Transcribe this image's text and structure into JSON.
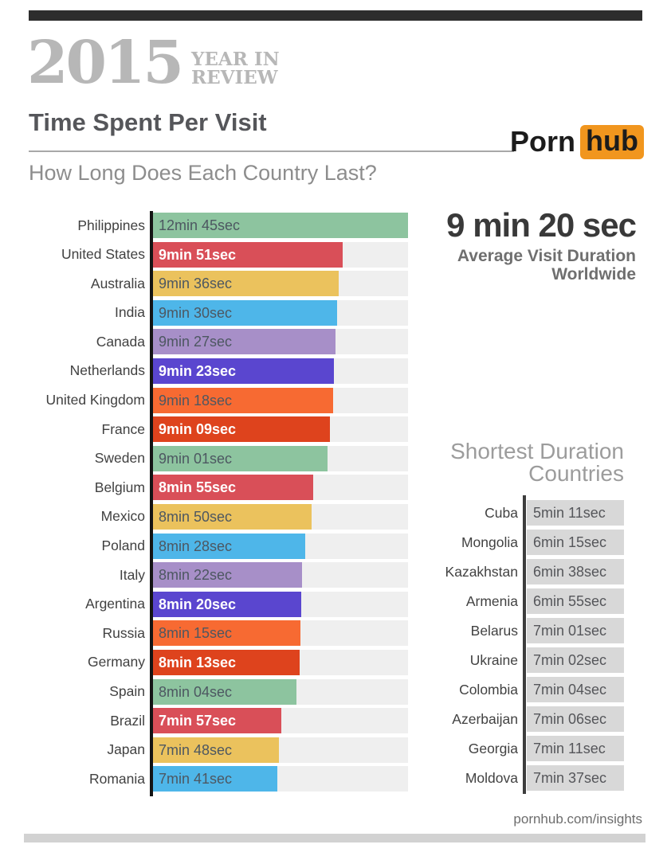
{
  "page": {
    "background": "#ffffff",
    "top_bar_color": "#2d2d2d",
    "bottom_bar_color": "#d2d2d2"
  },
  "header": {
    "year": "2015",
    "year_line1": "YEAR IN",
    "year_line2": "REVIEW",
    "title": "Time Spent Per Visit",
    "subtitle": "How Long Does Each Country Last?",
    "logo": {
      "word1": "Porn",
      "word2": "hub",
      "orange": "#f1961e"
    }
  },
  "summary": {
    "value": "9 min 20 sec",
    "line1": "Average Visit Duration",
    "line2": "Worldwide"
  },
  "shortest_header": {
    "line1": "Shortest Duration",
    "line2": "Countries"
  },
  "footer": {
    "url": "pornhub.com/insights"
  },
  "chart_data": [
    {
      "type": "bar",
      "orientation": "horizontal",
      "title": "Time Spent Per Visit",
      "subtitle": "How Long Does Each Country Last?",
      "value_unit": "average visit duration (min:sec)",
      "palette": {
        "green": "#8dc49f",
        "red": "#d94f58",
        "yellow": "#ebc25d",
        "blue": "#4eb6e9",
        "purpleLight": "#a78fc8",
        "purpleDark": "#5a46cf",
        "orange": "#f76a32",
        "redOrange": "#de431d"
      },
      "track_color": "#efefef",
      "rows": [
        {
          "country": "Philippines",
          "duration": "12min 45sec",
          "seconds": 765,
          "bar_pct": 100,
          "color": "green",
          "text": "dark"
        },
        {
          "country": "United States",
          "duration": "9min 51sec",
          "seconds": 591,
          "bar_pct": 74.5,
          "color": "red",
          "text": "white"
        },
        {
          "country": "Australia",
          "duration": "9min 36sec",
          "seconds": 576,
          "bar_pct": 72.7,
          "color": "yellow",
          "text": "dark"
        },
        {
          "country": "India",
          "duration": "9min 30sec",
          "seconds": 570,
          "bar_pct": 72.1,
          "color": "blue",
          "text": "dark"
        },
        {
          "country": "Canada",
          "duration": "9min 27sec",
          "seconds": 567,
          "bar_pct": 71.6,
          "color": "purpleLight",
          "text": "dark"
        },
        {
          "country": "Netherlands",
          "duration": "9min 23sec",
          "seconds": 563,
          "bar_pct": 71.0,
          "color": "purpleDark",
          "text": "white"
        },
        {
          "country": "United Kingdom",
          "duration": "9min 18sec",
          "seconds": 558,
          "bar_pct": 70.6,
          "color": "orange",
          "text": "dark"
        },
        {
          "country": "France",
          "duration": "9min 09sec",
          "seconds": 549,
          "bar_pct": 69.5,
          "color": "redOrange",
          "text": "white"
        },
        {
          "country": "Sweden",
          "duration": "9min 01sec",
          "seconds": 541,
          "bar_pct": 68.4,
          "color": "green",
          "text": "dark"
        },
        {
          "country": "Belgium",
          "duration": "8min 55sec",
          "seconds": 535,
          "bar_pct": 62.8,
          "color": "red",
          "text": "white"
        },
        {
          "country": "Mexico",
          "duration": "8min 50sec",
          "seconds": 530,
          "bar_pct": 62.2,
          "color": "yellow",
          "text": "dark"
        },
        {
          "country": "Poland",
          "duration": "8min 28sec",
          "seconds": 508,
          "bar_pct": 59.6,
          "color": "blue",
          "text": "dark"
        },
        {
          "country": "Italy",
          "duration": "8min 22sec",
          "seconds": 502,
          "bar_pct": 58.4,
          "color": "purpleLight",
          "text": "dark"
        },
        {
          "country": "Argentina",
          "duration": "8min 20sec",
          "seconds": 500,
          "bar_pct": 58.1,
          "color": "purpleDark",
          "text": "white"
        },
        {
          "country": "Russia",
          "duration": "8min 15sec",
          "seconds": 495,
          "bar_pct": 57.7,
          "color": "orange",
          "text": "dark"
        },
        {
          "country": "Germany",
          "duration": "8min 13sec",
          "seconds": 493,
          "bar_pct": 57.4,
          "color": "redOrange",
          "text": "white"
        },
        {
          "country": "Spain",
          "duration": "8min 04sec",
          "seconds": 484,
          "bar_pct": 56.3,
          "color": "green",
          "text": "dark"
        },
        {
          "country": "Brazil",
          "duration": "7min 57sec",
          "seconds": 477,
          "bar_pct": 50.4,
          "color": "red",
          "text": "white"
        },
        {
          "country": "Japan",
          "duration": "7min 48sec",
          "seconds": 468,
          "bar_pct": 49.4,
          "color": "yellow",
          "text": "dark"
        },
        {
          "country": "Romania",
          "duration": "7min 41sec",
          "seconds": 461,
          "bar_pct": 48.9,
          "color": "blue",
          "text": "dark"
        }
      ]
    },
    {
      "type": "table",
      "title": "Shortest Duration Countries",
      "value_unit": "average visit duration (min:sec)",
      "rows": [
        {
          "country": "Cuba",
          "duration": "5min 11sec",
          "seconds": 311
        },
        {
          "country": "Mongolia",
          "duration": "6min 15sec",
          "seconds": 375
        },
        {
          "country": "Kazakhstan",
          "duration": "6min 38sec",
          "seconds": 398
        },
        {
          "country": "Armenia",
          "duration": "6min 55sec",
          "seconds": 415
        },
        {
          "country": "Belarus",
          "duration": "7min 01sec",
          "seconds": 421
        },
        {
          "country": "Ukraine",
          "duration": "7min 02sec",
          "seconds": 422
        },
        {
          "country": "Colombia",
          "duration": "7min 04sec",
          "seconds": 424
        },
        {
          "country": "Azerbaijan",
          "duration": "7min 06sec",
          "seconds": 426
        },
        {
          "country": "Georgia",
          "duration": "7min 11sec",
          "seconds": 431
        },
        {
          "country": "Moldova",
          "duration": "7min 37sec",
          "seconds": 457
        }
      ]
    }
  ]
}
